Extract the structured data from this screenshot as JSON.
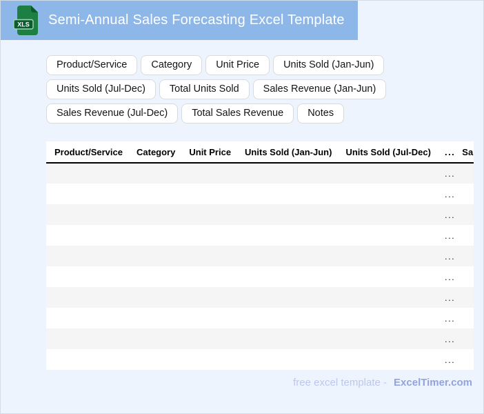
{
  "header": {
    "title": "Semi-Annual Sales Forecasting Excel Template",
    "file_badge": "XLS"
  },
  "chips": [
    "Product/Service",
    "Category",
    "Unit Price",
    "Units Sold (Jan-Jun)",
    "Units Sold (Jul-Dec)",
    "Total Units Sold",
    "Sales Revenue (Jan-Jun)",
    "Sales Revenue (Jul-Dec)",
    "Total Sales Revenue",
    "Notes"
  ],
  "table": {
    "columns": [
      "Product/Service",
      "Category",
      "Unit Price",
      "Units Sold (Jan-Jun)",
      "Units Sold (Jul-Dec)",
      "...",
      "Sales Revenue (Jan-Jun)"
    ],
    "ellipsis_cell": "...",
    "row_count": 10
  },
  "footer": {
    "text": "free excel template -",
    "brand": "ExcelTimer.com"
  },
  "colors": {
    "header_bg": "#8db7e8",
    "page_bg": "#eef4fd",
    "frame_border": "#d3dce9",
    "chip_border": "#d9dadd",
    "row_alt_bg": "#f5f5f5",
    "icon_green": "#1d7f43",
    "icon_green_dark": "#0d5c30",
    "icon_badge_border": "#9ad8b2",
    "footer_text": "#bdc7ee",
    "footer_brand": "#93a3dc"
  }
}
